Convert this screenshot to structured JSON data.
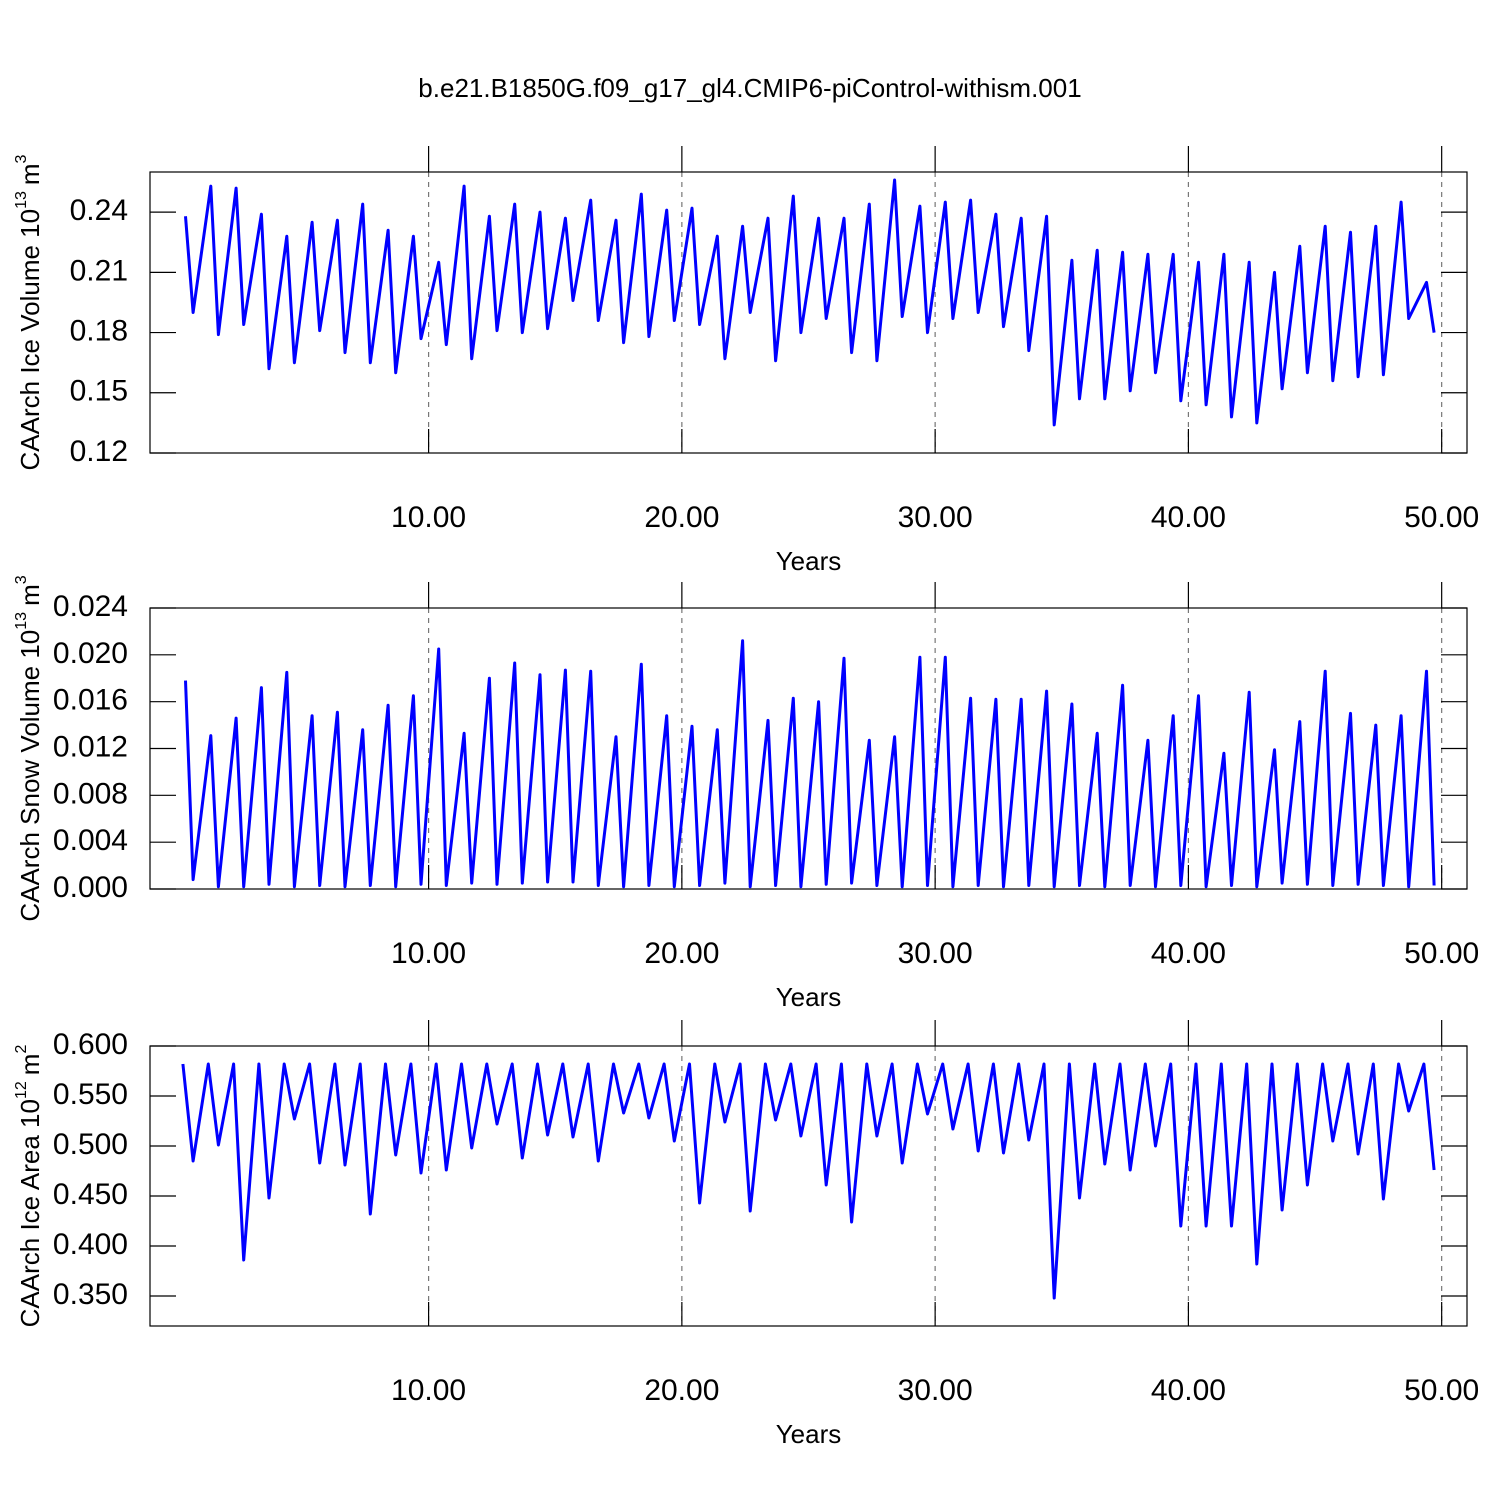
{
  "title": "b.e21.B1850G.f09_g17_gl4.CMIP6-piControl-withism.001",
  "chart_data": [
    {
      "type": "line",
      "ylabel": "CAArch Ice Volume 10",
      "ylabel_exp": "13",
      "yunit": "m",
      "yunit_exp": "3",
      "xlabel": "Years",
      "xlim": [
        -1,
        51
      ],
      "ylim": [
        0.12,
        0.26
      ],
      "xticks": [
        {
          "value": 10,
          "label": "10.00"
        },
        {
          "value": 20,
          "label": "20.00"
        },
        {
          "value": 30,
          "label": "30.00"
        },
        {
          "value": 40,
          "label": "40.00"
        },
        {
          "value": 50,
          "label": "50.00"
        }
      ],
      "yticks": [
        0.12,
        0.15,
        0.18,
        0.21,
        0.24
      ],
      "grid": "x-dashed",
      "series": [
        {
          "color": "#0000ff",
          "x": [
            0.4,
            0.7,
            1.4,
            1.7,
            2.4,
            2.7,
            3.4,
            3.7,
            4.4,
            4.7,
            5.4,
            5.7,
            6.4,
            6.7,
            7.4,
            7.7,
            8.4,
            8.7,
            9.4,
            9.7,
            10.4,
            10.7,
            11.4,
            11.7,
            12.4,
            12.7,
            13.4,
            13.7,
            14.4,
            14.7,
            15.4,
            15.7,
            16.4,
            16.7,
            17.4,
            17.7,
            18.4,
            18.7,
            19.4,
            19.7,
            20.4,
            20.7,
            21.4,
            21.7,
            22.4,
            22.7,
            23.4,
            23.7,
            24.4,
            24.7,
            25.4,
            25.7,
            26.4,
            26.7,
            27.4,
            27.7,
            28.4,
            28.7,
            29.4,
            29.7,
            30.4,
            30.7,
            31.4,
            31.7,
            32.4,
            32.7,
            33.4,
            33.7,
            34.4,
            34.7,
            35.4,
            35.7,
            36.4,
            36.7,
            37.4,
            37.7,
            38.4,
            38.7,
            39.4,
            39.7,
            40.4,
            40.7,
            41.4,
            41.7,
            42.4,
            42.7,
            43.4,
            43.7,
            44.4,
            44.7,
            45.4,
            45.7,
            46.4,
            46.7,
            47.4,
            47.7,
            48.4,
            48.7,
            49.4,
            49.7
          ],
          "values": [
            0.238,
            0.19,
            0.253,
            0.179,
            0.252,
            0.184,
            0.239,
            0.162,
            0.228,
            0.165,
            0.235,
            0.181,
            0.236,
            0.17,
            0.244,
            0.165,
            0.231,
            0.16,
            0.228,
            0.177,
            0.215,
            0.174,
            0.253,
            0.167,
            0.238,
            0.181,
            0.244,
            0.18,
            0.24,
            0.182,
            0.237,
            0.196,
            0.246,
            0.186,
            0.236,
            0.175,
            0.249,
            0.178,
            0.241,
            0.186,
            0.242,
            0.184,
            0.228,
            0.167,
            0.233,
            0.19,
            0.237,
            0.166,
            0.248,
            0.18,
            0.237,
            0.187,
            0.237,
            0.17,
            0.244,
            0.166,
            0.256,
            0.188,
            0.243,
            0.18,
            0.245,
            0.187,
            0.246,
            0.19,
            0.239,
            0.183,
            0.237,
            0.171,
            0.238,
            0.134,
            0.216,
            0.147,
            0.221,
            0.147,
            0.22,
            0.151,
            0.219,
            0.16,
            0.219,
            0.146,
            0.215,
            0.144,
            0.219,
            0.138,
            0.215,
            0.135,
            0.21,
            0.152,
            0.223,
            0.16,
            0.233,
            0.156,
            0.23,
            0.158,
            0.233,
            0.159,
            0.245,
            0.187,
            0.205,
            0.18
          ]
        }
      ]
    },
    {
      "type": "line",
      "ylabel": "CAArch Snow Volume 10",
      "ylabel_exp": "13",
      "yunit": "m",
      "yunit_exp": "3",
      "xlabel": "Years",
      "xlim": [
        -1,
        51
      ],
      "ylim": [
        0,
        0.024
      ],
      "xticks": [
        {
          "value": 10,
          "label": "10.00"
        },
        {
          "value": 20,
          "label": "20.00"
        },
        {
          "value": 30,
          "label": "30.00"
        },
        {
          "value": 40,
          "label": "40.00"
        },
        {
          "value": 50,
          "label": "50.00"
        }
      ],
      "yticks": [
        {
          "value": 0,
          "label": "0.000"
        },
        {
          "value": 0.004,
          "label": "0.004"
        },
        {
          "value": 0.008,
          "label": "0.008"
        },
        {
          "value": 0.012,
          "label": "0.012"
        },
        {
          "value": 0.016,
          "label": "0.016"
        },
        {
          "value": 0.02,
          "label": "0.020"
        },
        {
          "value": 0.024,
          "label": "0.024"
        }
      ],
      "grid": "x-dashed",
      "series": [
        {
          "color": "#0000ff",
          "x": [
            0.4,
            0.7,
            1.4,
            1.7,
            2.4,
            2.7,
            3.4,
            3.7,
            4.4,
            4.7,
            5.4,
            5.7,
            6.4,
            6.7,
            7.4,
            7.7,
            8.4,
            8.7,
            9.4,
            9.7,
            10.4,
            10.7,
            11.4,
            11.7,
            12.4,
            12.7,
            13.4,
            13.7,
            14.4,
            14.7,
            15.4,
            15.7,
            16.4,
            16.7,
            17.4,
            17.7,
            18.4,
            18.7,
            19.4,
            19.7,
            20.4,
            20.7,
            21.4,
            21.7,
            22.4,
            22.7,
            23.4,
            23.7,
            24.4,
            24.7,
            25.4,
            25.7,
            26.4,
            26.7,
            27.4,
            27.7,
            28.4,
            28.7,
            29.4,
            29.7,
            30.4,
            30.7,
            31.4,
            31.7,
            32.4,
            32.7,
            33.4,
            33.7,
            34.4,
            34.7,
            35.4,
            35.7,
            36.4,
            36.7,
            37.4,
            37.7,
            38.4,
            38.7,
            39.4,
            39.7,
            40.4,
            40.7,
            41.4,
            41.7,
            42.4,
            42.7,
            43.4,
            43.7,
            44.4,
            44.7,
            45.4,
            45.7,
            46.4,
            46.7,
            47.4,
            47.7,
            48.4,
            48.7,
            49.4,
            49.7
          ],
          "values": [
            0.0178,
            0.0008,
            0.0131,
            0.0002,
            0.0146,
            0.0002,
            0.0172,
            0.0004,
            0.0185,
            0.0002,
            0.0148,
            0.0003,
            0.0151,
            0.0002,
            0.0136,
            0.0003,
            0.0157,
            0.0002,
            0.0165,
            0.0004,
            0.0205,
            0.0003,
            0.0133,
            0.0005,
            0.018,
            0.0004,
            0.0193,
            0.0005,
            0.0183,
            0.0006,
            0.0187,
            0.0006,
            0.0186,
            0.0003,
            0.013,
            0.0002,
            0.0192,
            0.0003,
            0.0148,
            0.0002,
            0.0139,
            0.0003,
            0.0136,
            0.0005,
            0.0212,
            0.0002,
            0.0144,
            0.0003,
            0.0163,
            0.0002,
            0.016,
            0.0004,
            0.0197,
            0.0005,
            0.0127,
            0.0003,
            0.013,
            0.0002,
            0.0198,
            0.0003,
            0.0198,
            0.0002,
            0.0163,
            0.0003,
            0.0162,
            0.0002,
            0.0162,
            0.0003,
            0.0169,
            0.0002,
            0.0158,
            0.0003,
            0.0133,
            0.0002,
            0.0174,
            0.0003,
            0.0127,
            0.0002,
            0.0148,
            0.0003,
            0.0165,
            0.0002,
            0.0116,
            0.0003,
            0.0168,
            0.0002,
            0.0119,
            0.0005,
            0.0143,
            0.0004,
            0.0186,
            0.0003,
            0.015,
            0.0004,
            0.014,
            0.0003,
            0.0148,
            0.0002,
            0.0186,
            0.0003
          ]
        }
      ]
    },
    {
      "type": "line",
      "ylabel": "CAArch Ice Area 10",
      "ylabel_exp": "12",
      "yunit": "m",
      "yunit_exp": "2",
      "xlabel": "Years",
      "xlim": [
        -1,
        51
      ],
      "ylim": [
        0.32,
        0.6
      ],
      "xticks": [
        {
          "value": 10,
          "label": "10.00"
        },
        {
          "value": 20,
          "label": "20.00"
        },
        {
          "value": 30,
          "label": "30.00"
        },
        {
          "value": 40,
          "label": "40.00"
        },
        {
          "value": 50,
          "label": "50.00"
        }
      ],
      "yticks": [
        {
          "value": 0.35,
          "label": "0.350"
        },
        {
          "value": 0.4,
          "label": "0.400"
        },
        {
          "value": 0.45,
          "label": "0.450"
        },
        {
          "value": 0.5,
          "label": "0.500"
        },
        {
          "value": 0.55,
          "label": "0.550"
        },
        {
          "value": 0.6,
          "label": "0.600"
        }
      ],
      "grid": "x-dashed",
      "series": [
        {
          "color": "#0000ff",
          "x": [
            0.3,
            0.7,
            1.3,
            1.7,
            2.3,
            2.7,
            3.3,
            3.7,
            4.3,
            4.7,
            5.3,
            5.7,
            6.3,
            6.7,
            7.3,
            7.7,
            8.3,
            8.7,
            9.3,
            9.7,
            10.3,
            10.7,
            11.3,
            11.7,
            12.3,
            12.7,
            13.3,
            13.7,
            14.3,
            14.7,
            15.3,
            15.7,
            16.3,
            16.7,
            17.3,
            17.7,
            18.3,
            18.7,
            19.3,
            19.7,
            20.3,
            20.7,
            21.3,
            21.7,
            22.3,
            22.7,
            23.3,
            23.7,
            24.3,
            24.7,
            25.3,
            25.7,
            26.3,
            26.7,
            27.3,
            27.7,
            28.3,
            28.7,
            29.3,
            29.7,
            30.3,
            30.7,
            31.3,
            31.7,
            32.3,
            32.7,
            33.3,
            33.7,
            34.3,
            34.7,
            35.3,
            35.7,
            36.3,
            36.7,
            37.3,
            37.7,
            38.3,
            38.7,
            39.3,
            39.7,
            40.3,
            40.7,
            41.3,
            41.7,
            42.3,
            42.7,
            43.3,
            43.7,
            44.3,
            44.7,
            45.3,
            45.7,
            46.3,
            46.7,
            47.3,
            47.7,
            48.3,
            48.7,
            49.3,
            49.7
          ],
          "values": [
            0.582,
            0.485,
            0.582,
            0.501,
            0.582,
            0.386,
            0.582,
            0.448,
            0.582,
            0.527,
            0.582,
            0.483,
            0.582,
            0.481,
            0.582,
            0.432,
            0.582,
            0.491,
            0.582,
            0.473,
            0.582,
            0.476,
            0.582,
            0.498,
            0.582,
            0.522,
            0.582,
            0.488,
            0.582,
            0.511,
            0.582,
            0.509,
            0.582,
            0.485,
            0.582,
            0.533,
            0.582,
            0.528,
            0.582,
            0.505,
            0.582,
            0.443,
            0.582,
            0.524,
            0.582,
            0.435,
            0.582,
            0.526,
            0.582,
            0.51,
            0.582,
            0.461,
            0.582,
            0.424,
            0.582,
            0.51,
            0.582,
            0.483,
            0.582,
            0.532,
            0.582,
            0.517,
            0.582,
            0.495,
            0.582,
            0.493,
            0.582,
            0.506,
            0.582,
            0.348,
            0.582,
            0.448,
            0.582,
            0.482,
            0.582,
            0.476,
            0.582,
            0.5,
            0.582,
            0.42,
            0.582,
            0.42,
            0.582,
            0.42,
            0.582,
            0.382,
            0.582,
            0.436,
            0.582,
            0.461,
            0.582,
            0.505,
            0.582,
            0.492,
            0.582,
            0.447,
            0.582,
            0.535,
            0.582,
            0.476
          ]
        }
      ]
    }
  ]
}
